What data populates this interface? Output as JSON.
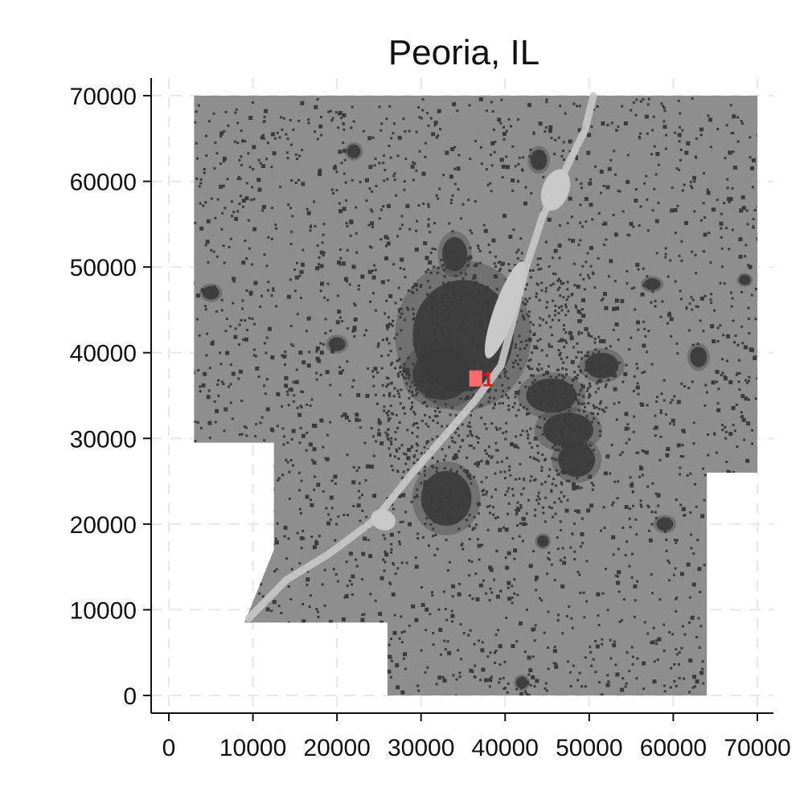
{
  "chart_data": {
    "type": "map",
    "title": "Peoria, IL",
    "xlabel": "",
    "ylabel": "",
    "xlim": [
      -2000,
      72000
    ],
    "ylim": [
      -2000,
      72000
    ],
    "x_ticks": [
      0,
      10000,
      20000,
      30000,
      40000,
      50000,
      60000,
      70000
    ],
    "y_ticks": [
      0,
      10000,
      20000,
      30000,
      40000,
      50000,
      60000,
      70000
    ],
    "x_tick_labels": [
      "0",
      "10000",
      "20000",
      "30000",
      "40000",
      "50000",
      "60000",
      "70000"
    ],
    "y_tick_labels": [
      "0",
      "10000",
      "20000",
      "30000",
      "40000",
      "50000",
      "60000",
      "70000"
    ],
    "grid": true,
    "region_outline": [
      [
        3000,
        70000
      ],
      [
        70000,
        70000
      ],
      [
        70000,
        26000
      ],
      [
        64000,
        26000
      ],
      [
        64000,
        0
      ],
      [
        26000,
        0
      ],
      [
        26000,
        8500
      ],
      [
        9000,
        8500
      ],
      [
        12500,
        17000
      ],
      [
        12500,
        29500
      ],
      [
        3000,
        29500
      ]
    ],
    "river_path": [
      [
        9500,
        9000
      ],
      [
        14000,
        13500
      ],
      [
        19000,
        16500
      ],
      [
        24500,
        20500
      ],
      [
        29000,
        26000
      ],
      [
        33000,
        30500
      ],
      [
        36500,
        34500
      ],
      [
        39500,
        38500
      ],
      [
        41000,
        44000
      ],
      [
        42500,
        50000
      ],
      [
        44500,
        56000
      ],
      [
        47500,
        62000
      ],
      [
        49500,
        66000
      ],
      [
        50500,
        70000
      ]
    ],
    "lakes": [
      {
        "x": 25500,
        "y": 20500,
        "rx": 1500,
        "ry": 1200
      },
      {
        "x": 40000,
        "y": 45000,
        "rx": 1300,
        "ry": 6000
      },
      {
        "x": 46000,
        "y": 59000,
        "rx": 1600,
        "ry": 2500
      }
    ],
    "urban_clusters": [
      {
        "x": 35000,
        "y": 42000,
        "rx": 6000,
        "ry": 6500
      },
      {
        "x": 32500,
        "y": 37500,
        "rx": 3500,
        "ry": 3000
      },
      {
        "x": 33000,
        "y": 23000,
        "rx": 3000,
        "ry": 3200
      },
      {
        "x": 48500,
        "y": 27500,
        "rx": 2200,
        "ry": 2000
      },
      {
        "x": 47500,
        "y": 31000,
        "rx": 3000,
        "ry": 2000
      },
      {
        "x": 51500,
        "y": 38500,
        "rx": 2000,
        "ry": 1500
      },
      {
        "x": 45500,
        "y": 35000,
        "rx": 3000,
        "ry": 2000
      },
      {
        "x": 34000,
        "y": 51500,
        "rx": 1500,
        "ry": 2000
      },
      {
        "x": 44000,
        "y": 62500,
        "rx": 1000,
        "ry": 1200
      },
      {
        "x": 63000,
        "y": 39500,
        "rx": 1000,
        "ry": 1200
      },
      {
        "x": 57500,
        "y": 48000,
        "rx": 1000,
        "ry": 700
      },
      {
        "x": 20000,
        "y": 41000,
        "rx": 1000,
        "ry": 800
      },
      {
        "x": 22000,
        "y": 63500,
        "rx": 800,
        "ry": 800
      },
      {
        "x": 5000,
        "y": 47000,
        "rx": 1000,
        "ry": 800
      },
      {
        "x": 68500,
        "y": 48500,
        "rx": 700,
        "ry": 600
      },
      {
        "x": 59000,
        "y": 20000,
        "rx": 1000,
        "ry": 800
      },
      {
        "x": 42000,
        "y": 1500,
        "rx": 700,
        "ry": 700
      },
      {
        "x": 44500,
        "y": 18000,
        "rx": 700,
        "ry": 700
      }
    ],
    "colors": {
      "land": "#8e8e8e",
      "urban": "#3b3b3b",
      "water": "#c8c8c8",
      "marker": "#ff6b6b",
      "marker_label": "#e31a1c",
      "grid": "#e8e8e8",
      "axis": "#111111"
    },
    "markers": [
      {
        "label": "1",
        "x": 36500,
        "y": 37000
      }
    ]
  }
}
